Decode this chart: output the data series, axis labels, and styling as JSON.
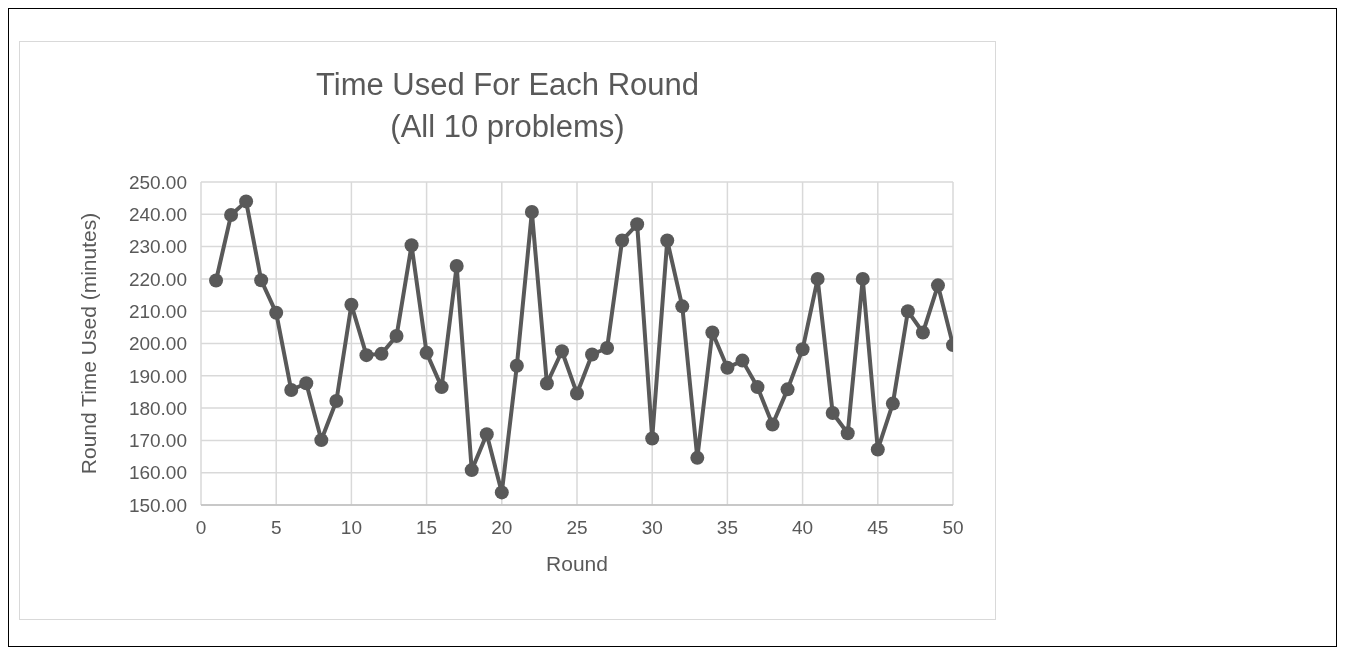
{
  "chart_data": {
    "type": "line",
    "title": "Time Used For Each Round\n(All 10 problems)",
    "xlabel": "Round",
    "ylabel": "Round Time Used (minutes)",
    "x": [
      1,
      2,
      3,
      4,
      5,
      6,
      7,
      8,
      9,
      10,
      11,
      12,
      13,
      14,
      15,
      16,
      17,
      18,
      19,
      20,
      21,
      22,
      23,
      24,
      25,
      26,
      27,
      28,
      29,
      30,
      31,
      32,
      33,
      34,
      35,
      36,
      37,
      38,
      39,
      40,
      41,
      42,
      43,
      44,
      45,
      46,
      47,
      48,
      49,
      50
    ],
    "values": [
      219.5,
      239.8,
      244,
      219.6,
      209.5,
      185.6,
      187.7,
      170.1,
      182.2,
      212,
      196.4,
      196.8,
      202.3,
      230.4,
      197.1,
      186.5,
      224,
      160.8,
      171.9,
      153.9,
      193.1,
      240.7,
      187.6,
      197.6,
      184.5,
      196.6,
      198.6,
      231.9,
      236.9,
      170.6,
      231.9,
      211.5,
      164.6,
      203.4,
      192.5,
      194.7,
      186.5,
      174.9,
      185.8,
      198.2,
      220,
      178.5,
      172.2,
      220,
      167.2,
      181.4,
      210,
      203.4,
      218,
      199.5
    ],
    "color": "#595959",
    "xlim": [
      0,
      50
    ],
    "xticks": [
      0,
      5,
      10,
      15,
      20,
      25,
      30,
      35,
      40,
      45,
      50
    ],
    "ylim": [
      150,
      250
    ],
    "yticks": [
      {
        "value": 150,
        "label": "150.00"
      },
      {
        "value": 160,
        "label": "160.00"
      },
      {
        "value": 170,
        "label": "170.00"
      },
      {
        "value": 180,
        "label": "180.00"
      },
      {
        "value": 190,
        "label": "190.00"
      },
      {
        "value": 200,
        "label": "200.00"
      },
      {
        "value": 210,
        "label": "210.00"
      },
      {
        "value": 220,
        "label": "220.00"
      },
      {
        "value": 230,
        "label": "230.00"
      },
      {
        "value": 240,
        "label": "240.00"
      },
      {
        "value": 250,
        "label": "250.00"
      }
    ],
    "grid": true,
    "marker": "circle",
    "line_style": "solid"
  }
}
